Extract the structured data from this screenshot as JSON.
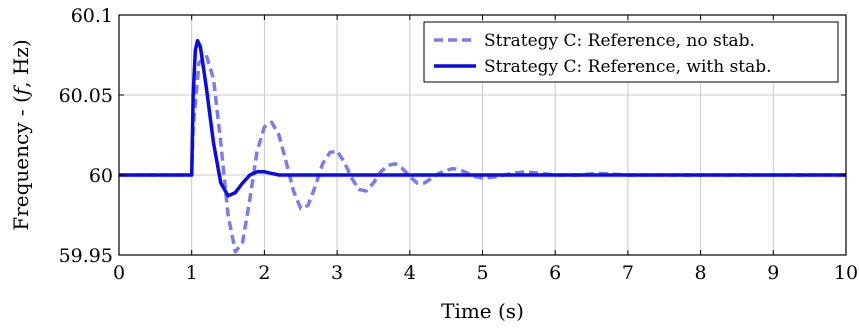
{
  "chart_data": {
    "type": "line",
    "xlabel": "Time (s)",
    "ylabel": "Frequency - (f, Hz)",
    "xlim": [
      0,
      10
    ],
    "ylim": [
      59.95,
      60.1
    ],
    "xticks": [
      "0",
      "1",
      "2",
      "3",
      "4",
      "5",
      "6",
      "7",
      "8",
      "9",
      "10"
    ],
    "yticks": [
      "59.95",
      "60",
      "60.05",
      "60.1"
    ],
    "grid": true,
    "legend_position": "top-right",
    "series": [
      {
        "name": "Strategy C: Reference, no stab.",
        "color": "#7b7bf0",
        "style": "dashed",
        "x": [
          0,
          1.0,
          1.02,
          1.1,
          1.2,
          1.3,
          1.4,
          1.5,
          1.6,
          1.7,
          1.8,
          1.9,
          2.0,
          2.1,
          2.2,
          2.3,
          2.4,
          2.5,
          2.6,
          2.7,
          2.8,
          2.9,
          3.0,
          3.1,
          3.2,
          3.3,
          3.4,
          3.5,
          3.6,
          3.7,
          3.8,
          3.9,
          4.0,
          4.1,
          4.2,
          4.3,
          4.4,
          4.5,
          4.6,
          4.7,
          4.8,
          4.9,
          5.0,
          5.2,
          5.4,
          5.6,
          5.8,
          6.0,
          6.3,
          6.6,
          7.0,
          8.0,
          9.0,
          10.0
        ],
        "y": [
          60.0,
          60.0,
          60.03,
          60.07,
          60.075,
          60.06,
          60.02,
          59.975,
          59.952,
          59.958,
          59.985,
          60.015,
          60.03,
          60.033,
          60.025,
          60.008,
          59.99,
          59.979,
          59.981,
          59.993,
          60.007,
          60.014,
          60.015,
          60.008,
          59.998,
          59.991,
          59.99,
          59.995,
          60.002,
          60.006,
          60.007,
          60.004,
          59.999,
          59.995,
          59.995,
          59.998,
          60.001,
          60.003,
          60.004,
          60.003,
          60.001,
          59.999,
          59.998,
          59.999,
          60.001,
          60.002,
          60.001,
          60.0,
          60.0,
          60.001,
          60.0,
          60.0,
          60.0,
          60.0
        ]
      },
      {
        "name": "Strategy C: Reference, with stab.",
        "color": "#0a0aee",
        "style": "solid",
        "x": [
          0,
          1.0,
          1.02,
          1.05,
          1.08,
          1.12,
          1.2,
          1.3,
          1.4,
          1.5,
          1.6,
          1.7,
          1.8,
          1.9,
          2.0,
          2.1,
          2.2,
          2.4,
          2.6,
          3.0,
          4.0,
          5.0,
          6.0,
          7.0,
          8.0,
          9.0,
          10.0
        ],
        "y": [
          60.0,
          60.0,
          60.05,
          60.078,
          60.084,
          60.08,
          60.055,
          60.02,
          59.995,
          59.987,
          59.989,
          59.995,
          60.0,
          60.002,
          60.002,
          60.001,
          60.0,
          60.0,
          60.0,
          60.0,
          60.0,
          60.0,
          60.0,
          60.0,
          60.0,
          60.0,
          60.0
        ]
      }
    ]
  }
}
